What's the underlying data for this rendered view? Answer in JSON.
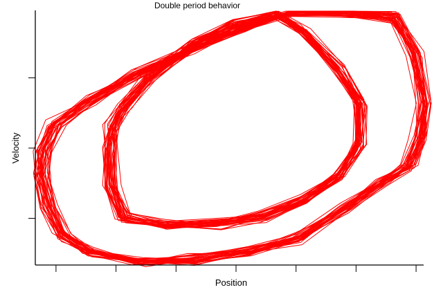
{
  "chart_data": {
    "type": "line",
    "title": "Double period behavior",
    "xlabel": "Position",
    "ylabel": "Velocity",
    "xlim": [
      -3.35,
      3.15
    ],
    "ylim": [
      -1.65,
      1.96
    ],
    "x_ticks": [
      -3,
      -2,
      -1,
      0,
      1,
      2,
      3
    ],
    "y_ticks": [
      -1,
      0,
      1
    ],
    "tick_labels_shown": false,
    "grid": false,
    "color": "#ff0000",
    "series": [
      {
        "role": "outer loop",
        "points": [
          [
            -3.24,
            -0.4
          ],
          [
            -3.13,
            -0.85
          ],
          [
            -2.9,
            -1.24
          ],
          [
            -2.43,
            -1.49
          ],
          [
            -1.63,
            -1.62
          ],
          [
            -0.7,
            -1.59
          ],
          [
            0.22,
            -1.49
          ],
          [
            1.03,
            -1.29
          ],
          [
            1.83,
            -0.85
          ],
          [
            2.41,
            -0.5
          ],
          [
            2.87,
            -0.26
          ],
          [
            3.05,
            0.14
          ],
          [
            3.13,
            0.63
          ],
          [
            2.99,
            1.32
          ],
          [
            2.64,
            1.86
          ],
          [
            1.83,
            1.93
          ],
          [
            0.91,
            1.91
          ],
          [
            0.1,
            1.71
          ],
          [
            -0.7,
            1.42
          ],
          [
            -1.63,
            1.07
          ],
          [
            -2.43,
            0.68
          ],
          [
            -3.01,
            0.33
          ],
          [
            -3.22,
            -0.06
          ]
        ]
      },
      {
        "role": "inner loop",
        "points": [
          [
            -2.09,
            -0.01
          ],
          [
            -2.06,
            -0.55
          ],
          [
            -1.86,
            -1.0
          ],
          [
            -1.16,
            -1.1
          ],
          [
            -0.24,
            -1.08
          ],
          [
            0.45,
            -0.97
          ],
          [
            1.14,
            -0.75
          ],
          [
            1.72,
            -0.4
          ],
          [
            2.06,
            0.04
          ],
          [
            2.06,
            0.63
          ],
          [
            1.72,
            1.12
          ],
          [
            1.14,
            1.66
          ],
          [
            0.68,
            1.91
          ],
          [
            -0.01,
            1.76
          ],
          [
            -0.7,
            1.47
          ],
          [
            -1.4,
            1.02
          ],
          [
            -1.86,
            0.58
          ],
          [
            -2.06,
            0.29
          ]
        ]
      }
    ]
  }
}
